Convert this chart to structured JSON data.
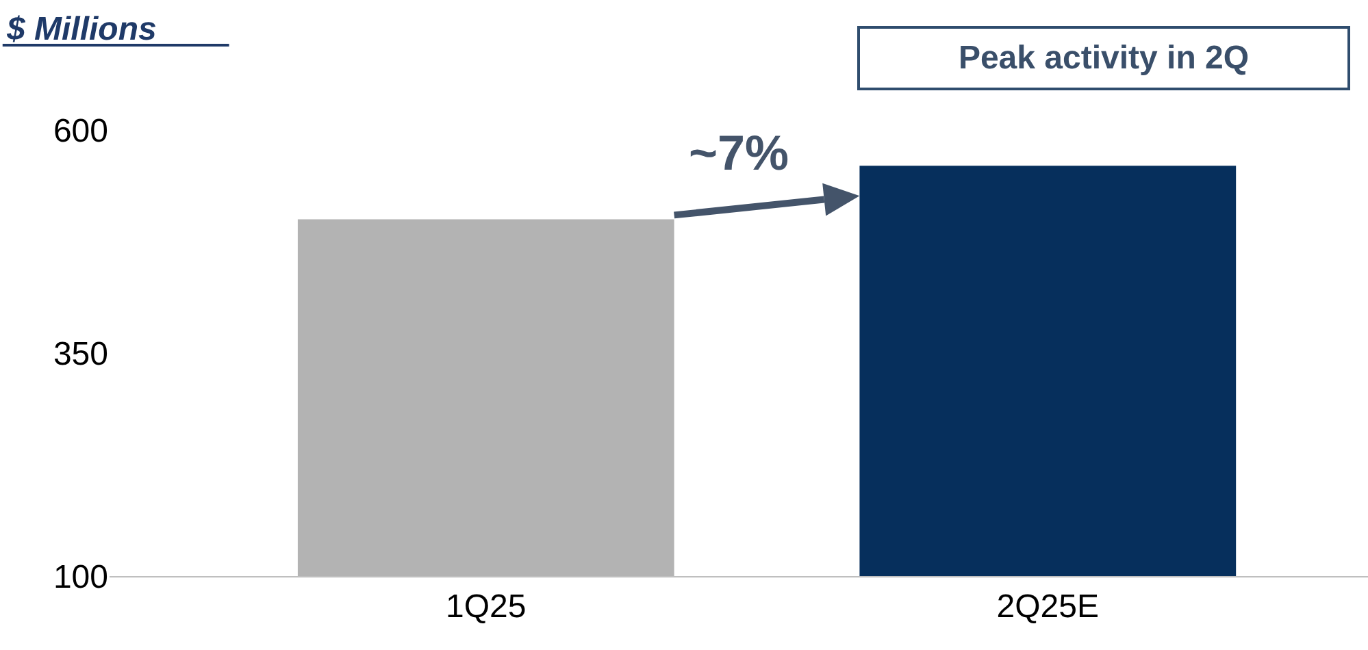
{
  "chart_data": {
    "type": "bar",
    "ylabel": "$ Millions",
    "categories": [
      "1Q25",
      "2Q25E"
    ],
    "values": [
      500,
      560
    ],
    "colors": [
      "#b3b3b3",
      "#062f5c"
    ],
    "ylim": [
      100,
      600
    ],
    "yticks": [
      100,
      350,
      600
    ],
    "annotations": [
      "Peak activity in 2Q",
      "~7%"
    ]
  }
}
